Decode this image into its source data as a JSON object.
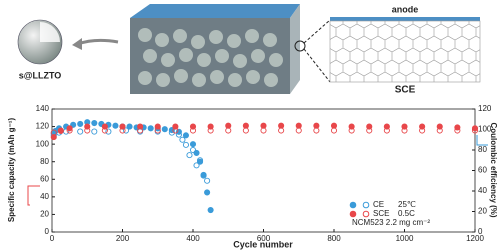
{
  "schematic": {
    "particle_label": "s@LLZTO",
    "anode_label": "anode",
    "electrolyte_label": "SCE"
  },
  "chart_data": {
    "type": "scatter",
    "xlabel": "Cycle number",
    "ylabel": "Specific capacity (mAh g⁻¹)",
    "y2label": "Coulombic efficiency (%)",
    "xlim": [
      0,
      1200
    ],
    "xticks": [
      0,
      200,
      400,
      600,
      800,
      1000,
      1200
    ],
    "ylim": [
      0,
      140
    ],
    "yticks": [
      0,
      20,
      40,
      60,
      80,
      100,
      120,
      140
    ],
    "y2lim": [
      0,
      120
    ],
    "y2ticks": [
      0,
      20,
      40,
      60,
      80,
      100,
      120
    ],
    "legend_notes": [
      "25℃",
      "0.5C",
      "NCM523  2.2 mg cm⁻²"
    ],
    "series": [
      {
        "name": "CE",
        "color": "#3a9bd9",
        "filled": true,
        "axis": "y",
        "x": [
          5,
          10,
          20,
          40,
          60,
          80,
          100,
          120,
          140,
          160,
          180,
          200,
          220,
          240,
          260,
          280,
          300,
          320,
          340,
          360,
          380,
          400,
          410,
          420,
          430,
          440,
          450
        ],
        "values": [
          110,
          115,
          118,
          120,
          122,
          123,
          125,
          124,
          123,
          122,
          121,
          120,
          120,
          119,
          119,
          118,
          118,
          117,
          116,
          114,
          110,
          100,
          90,
          80,
          65,
          45,
          25
        ]
      },
      {
        "name": "CE",
        "color": "#3a9bd9",
        "filled": false,
        "axis": "y2",
        "x": [
          5,
          20,
          40,
          80,
          120,
          160,
          210,
          250,
          300,
          340,
          360,
          370,
          380,
          390,
          400,
          410,
          420,
          430,
          440
        ],
        "values": [
          96,
          97,
          98,
          98,
          98,
          98,
          99,
          98,
          98,
          97,
          95,
          90,
          85,
          75,
          80,
          65,
          70,
          55,
          50
        ]
      },
      {
        "name": "SCE",
        "color": "#e8474a",
        "filled": true,
        "axis": "y",
        "x": [
          5,
          25,
          50,
          100,
          150,
          200,
          250,
          300,
          350,
          400,
          450,
          500,
          550,
          600,
          650,
          700,
          750,
          800,
          850,
          900,
          950,
          1000,
          1050,
          1100,
          1150,
          1200
        ],
        "values": [
          108,
          115,
          118,
          120,
          120,
          120,
          120,
          120,
          120,
          120,
          120,
          121,
          121,
          121,
          121,
          121,
          121,
          121,
          120,
          120,
          120,
          120,
          120,
          120,
          119,
          118
        ]
      },
      {
        "name": "SCE",
        "color": "#e8474a",
        "filled": false,
        "axis": "y2",
        "x": [
          5,
          25,
          50,
          100,
          150,
          200,
          250,
          300,
          350,
          400,
          450,
          500,
          550,
          600,
          650,
          700,
          750,
          800,
          850,
          900,
          950,
          1000,
          1050,
          1100,
          1150,
          1200
        ],
        "values": [
          97,
          99,
          99,
          99,
          99,
          99,
          99,
          99,
          99,
          99,
          99,
          99,
          99,
          99,
          99,
          99,
          99,
          99,
          99,
          99,
          99,
          99,
          99,
          99,
          99,
          99
        ]
      }
    ]
  }
}
